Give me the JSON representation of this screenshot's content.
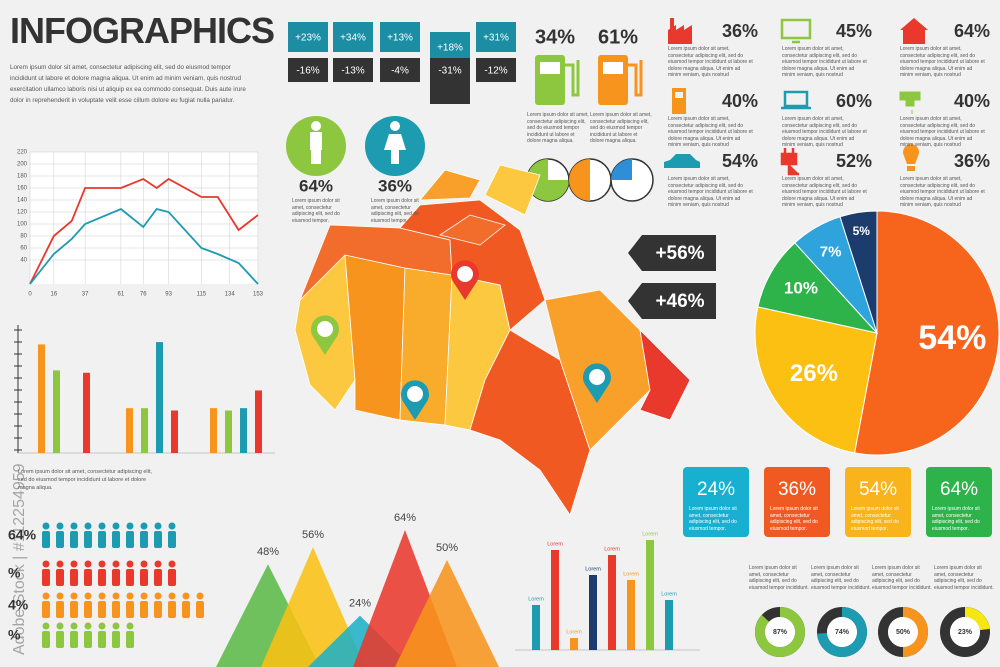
{
  "header": {
    "title": "INFOGRAPHICS",
    "text": "Lorem ipsum dolor sit amet, consectetur adipiscing elit, sed do eiusmod tempor incididunt ut labore et dolore magna aliqua. Ut enim ad minim veniam, quis nostrud exercitation ullamco laboris nisi ut aliquip ex ea commodo consequat. Duis aute irure dolor in reprehenderit in voluptate velit esse cillum dolore eu fugiat nulla pariatur."
  },
  "watermark": "Adobe Stock | #112254959",
  "changes": [
    {
      "up": "+23%",
      "down": "-16%"
    },
    {
      "up": "+34%",
      "down": "-13%"
    },
    {
      "up": "+13%",
      "down": "-4%"
    },
    {
      "up": "+18%",
      "down": "-31%"
    },
    {
      "up": "+31%",
      "down": "-12%"
    }
  ],
  "pumps": [
    {
      "label": "34%",
      "text": "Lorem ipsum dolor sit amet, consectetur adipiscing elit, sed do eiusmod tempor incididunt ut labore et dolore magna aliqua."
    },
    {
      "label": "61%",
      "text": "Lorem ipsum dolor sit amet, consectetur adipiscing elit, sed do eiusmod tempor incididunt ut labore et dolore magna aliqua."
    }
  ],
  "icon_stats": [
    {
      "label": "36%",
      "text": "Lorem ipsum dolor sit amet, consectetur adipiscing elit, sed do eiusmod tempor incididunt ut labore et dolore magna aliqua. Ut enim ad minim veniam, quis nostrud exercitation ullamco laboris nisi ut aliquip ex ea commodo consequat."
    },
    {
      "label": "45%",
      "text": "Lorem ipsum dolor sit amet, consectetur adipiscing elit, sed do eiusmod tempor incididunt ut labore et dolore magna aliqua. Ut enim ad minim veniam, quis nostrud exercitation ullamco laboris nisi ut aliquip ex ea commodo consequat."
    },
    {
      "label": "64%",
      "text": "Lorem ipsum dolor sit amet, consectetur adipiscing elit, sed do eiusmod tempor incididunt ut labore et dolore magna aliqua. Ut enim ad minim veniam, quis nostrud exercitation ullamco laboris nisi ut aliquip ex ea commodo consequat."
    },
    {
      "label": "40%",
      "text": "Lorem ipsum dolor sit amet, consectetur adipiscing elit, sed do eiusmod tempor incididunt ut labore et dolore magna aliqua. Ut enim ad minim veniam, quis nostrud exercitation ullamco laboris nisi ut aliquip ex ea commodo consequat."
    },
    {
      "label": "60%",
      "text": "Lorem ipsum dolor sit amet, consectetur adipiscing elit, sed do eiusmod tempor incididunt ut labore et dolore magna aliqua. Ut enim ad minim veniam, quis nostrud exercitation ullamco laboris nisi ut aliquip ex ea commodo consequat."
    },
    {
      "label": "40%",
      "text": "Lorem ipsum dolor sit amet, consectetur adipiscing elit, sed do eiusmod tempor incididunt ut labore et dolore magna aliqua. Ut enim ad minim veniam, quis nostrud exercitation ullamco laboris nisi ut aliquip ex ea commodo consequat."
    },
    {
      "label": "54%",
      "text": "Lorem ipsum dolor sit amet, consectetur adipiscing elit, sed do eiusmod tempor incididunt ut labore et dolore magna aliqua. Ut enim ad minim veniam, quis nostrud exercitation ullamco laboris nisi ut aliquip ex ea commodo consequat."
    },
    {
      "label": "52%",
      "text": "Lorem ipsum dolor sit amet, consectetur adipiscing elit, sed do eiusmod tempor incididunt ut labore et dolore magna aliqua. Ut enim ad minim veniam, quis nostrud exercitation ullamco laboris nisi ut aliquip ex ea commodo consequat."
    },
    {
      "label": "36%",
      "text": "Lorem ipsum dolor sit amet, consectetur adipiscing elit, sed do eiusmod tempor incididunt ut labore et dolore magna aliqua. Ut enim ad minim veniam, quis nostrud exercitation ullamco laboris nisi ut aliquip ex ea commodo consequat."
    }
  ],
  "gender": [
    {
      "label": "64%",
      "text": "Lorem ipsum dolor sit amet, consectetur adipiscing elit, sed do eiusmod tempor."
    },
    {
      "label": "36%",
      "text": "Lorem ipsum dolor sit amet, consectetur adipiscing elit, sed do eiusmod tempor."
    }
  ],
  "map_callouts": [
    "+56%",
    "+46%"
  ],
  "bar_note": "Lorem ipsum dolor sit amet, consectetur adipiscing elit, sed do eiusmod tempor incididunt ut labore et dolore magna aliqua.",
  "people_labels": [
    "64%",
    "%",
    "4%",
    "%"
  ],
  "tiles": [
    {
      "label": "24%",
      "text": "Lorem ipsum dolor sit amet, consectetur adipiscing elit, sed do eiusmod tempor."
    },
    {
      "label": "36%",
      "text": "Lorem ipsum dolor sit amet, consectetur adipiscing elit, sed do eiusmod tempor."
    },
    {
      "label": "54%",
      "text": "Lorem ipsum dolor sit amet, consectetur adipiscing elit, sed do eiusmod tempor."
    },
    {
      "label": "64%",
      "text": "Lorem ipsum dolor sit amet, consectetur adipiscing elit, sed do eiusmod tempor."
    }
  ],
  "chart_data": [
    {
      "type": "line",
      "x": [
        0,
        16,
        28,
        37,
        61,
        76,
        85,
        93,
        115,
        126,
        140,
        153
      ],
      "series": [
        {
          "color": "#e8392c",
          "values": [
            0,
            80,
            105,
            160,
            160,
            175,
            160,
            175,
            145,
            145,
            90,
            115
          ]
        },
        {
          "color": "#1d9bb0",
          "values": [
            0,
            50,
            75,
            100,
            125,
            95,
            125,
            120,
            60,
            50,
            35,
            0
          ]
        }
      ],
      "xlim": [
        0,
        153
      ],
      "ylim": [
        0,
        220
      ],
      "xticks": [
        0,
        16,
        37,
        61,
        76,
        93,
        115,
        134,
        153
      ],
      "yticks": [
        40,
        60,
        80,
        100,
        120,
        140,
        160,
        180,
        200,
        220
      ],
      "grid": true
    },
    {
      "type": "bar",
      "categories": [
        null,
        null,
        null
      ],
      "ylim": [
        0,
        100
      ],
      "series": [
        {
          "color": "#f7941d",
          "values": [
            92,
            38,
            38
          ]
        },
        {
          "color": "#8dc63f",
          "values": [
            70,
            38,
            36
          ]
        },
        {
          "color": "#1d9bb0",
          "values": [
            0,
            94,
            38
          ]
        },
        {
          "color": "#e8392c",
          "values": [
            68,
            36,
            53
          ]
        }
      ]
    },
    {
      "type": "pie",
      "values": [
        54,
        26,
        10,
        7,
        5
      ],
      "value_labels": [
        "54%",
        "26%",
        "10%",
        "7%",
        "5%"
      ],
      "colors": [
        "#f7651d",
        "#fbc012",
        "#2eb34a",
        "#2ea3dc",
        "#1d3c6e"
      ]
    },
    {
      "type": "triangle",
      "values": [
        48,
        56,
        24,
        64,
        50
      ],
      "value_labels": [
        "48%",
        "56%",
        "24%",
        "64%",
        "50%"
      ],
      "colors": [
        "#5bb947",
        "#f9c013",
        "#1fb1c6",
        "#e8392c",
        "#f7941d"
      ]
    },
    {
      "type": "bar",
      "categories": [
        "Lorem",
        "Lorem",
        "Lorem",
        "Lorem",
        "Lorem",
        "Lorem",
        "Lorem",
        "Lorem"
      ],
      "values": [
        45,
        100,
        12,
        75,
        95,
        70,
        110,
        50
      ],
      "colors": [
        "#1d9bb0",
        "#e8392c",
        "#f7941d",
        "#1d3c6e",
        "#e8392c",
        "#f7941d",
        "#8dc63f",
        "#1d9bb0"
      ]
    },
    {
      "type": "donut",
      "values": [
        87,
        74,
        50,
        23
      ],
      "value_labels": [
        "87%",
        "74%",
        "50%",
        "23%"
      ],
      "colors": [
        "#8dc63f",
        "#1d9bb0",
        "#f7941d",
        "#f5e614"
      ],
      "descriptions": [
        "Lorem ipsum dolor sit amet, consectetur adipiscing elit, sed do eiusmod tempor incididunt.",
        "Lorem ipsum dolor sit amet, consectetur adipiscing elit, sed do eiusmod tempor incididunt.",
        "Lorem ipsum dolor sit amet, consectetur adipiscing elit, sed do eiusmod tempor incididunt.",
        "Lorem ipsum dolor sit amet, consectetur adipiscing elit, sed do eiusmod tempor incididunt."
      ]
    }
  ]
}
